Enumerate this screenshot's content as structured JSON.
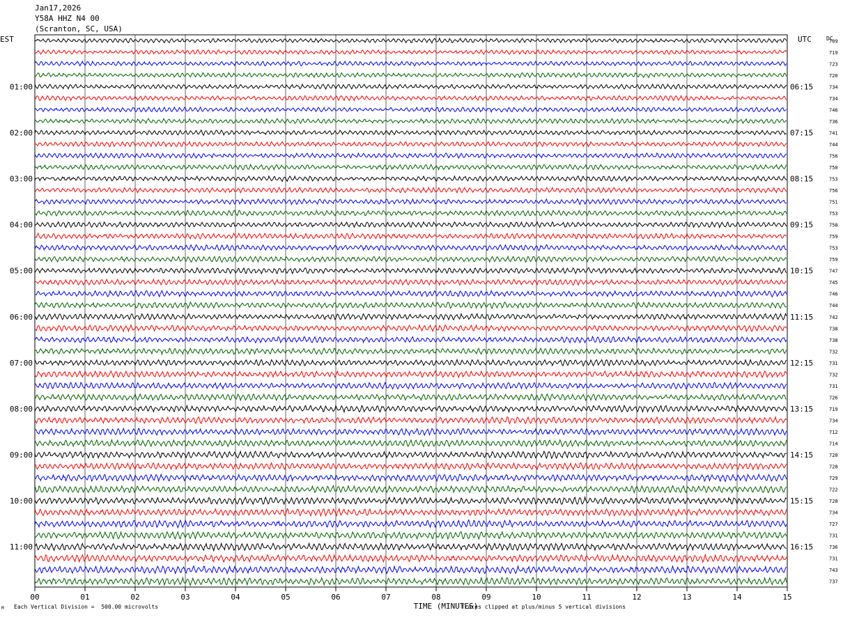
{
  "header": {
    "date": "Jan17,2026",
    "station": "Y58A HHZ N4 00",
    "location": "(Scranton, SC, USA)"
  },
  "left_axis_label": "EST",
  "right_axis_label": "UTC",
  "dc_label": "DC",
  "footer": {
    "scale": "Each Vertical Division =  500.00 microvolts",
    "clip": "Traces clipped at plus/minus 5 vertical divisions",
    "mark": "M"
  },
  "colors": {
    "trace_cycle": [
      "#000000",
      "#ff0000",
      "#0000ff",
      "#006400"
    ],
    "grid": "#000000"
  },
  "chart_data": {
    "type": "line",
    "title": "Y58A HHZ N4 00",
    "xlabel": "TIME (MINUTES)",
    "x_ticks": [
      "00",
      "01",
      "02",
      "03",
      "04",
      "05",
      "06",
      "07",
      "08",
      "09",
      "10",
      "11",
      "12",
      "13",
      "14",
      "15"
    ],
    "xlim": [
      0,
      15
    ],
    "rows_per_hour": 4,
    "left_hour_labels": [
      "01:00",
      "02:00",
      "03:00",
      "04:00",
      "05:00",
      "06:00",
      "07:00",
      "08:00",
      "09:00",
      "10:00",
      "11:00"
    ],
    "right_hour_labels": [
      "06:15",
      "07:15",
      "08:15",
      "09:15",
      "10:15",
      "11:15",
      "12:15",
      "13:15",
      "14:15",
      "15:15",
      "16:15"
    ],
    "dc_offsets": [
      709,
      719,
      723,
      720,
      734,
      734,
      746,
      736,
      741,
      744,
      756,
      750,
      753,
      756,
      751,
      753,
      758,
      759,
      753,
      759,
      747,
      745,
      746,
      744,
      742,
      738,
      738,
      732,
      731,
      732,
      731,
      726,
      719,
      734,
      712,
      714,
      720,
      728,
      729,
      722,
      728,
      734,
      727,
      731,
      736,
      731,
      743,
      737
    ],
    "grid": "vertical-minute-lines"
  }
}
